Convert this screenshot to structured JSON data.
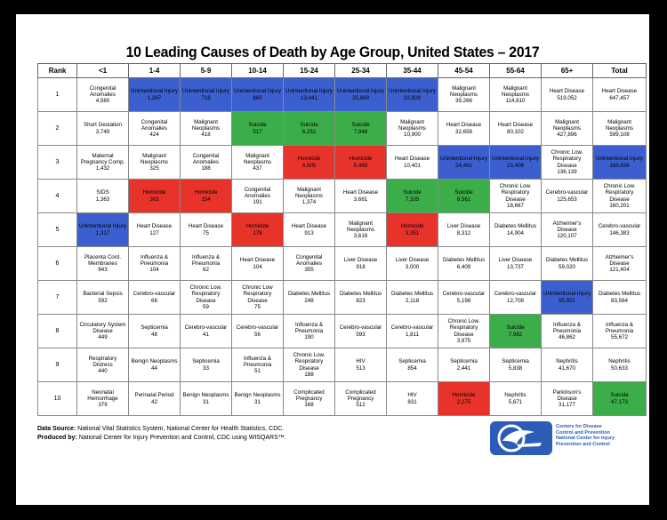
{
  "title": "10 Leading Causes of Death by Age Group, United States – 2017",
  "headers": [
    "Rank",
    "<1",
    "1-4",
    "5-9",
    "10-14",
    "15-24",
    "25-34",
    "35-44",
    "45-54",
    "55-64",
    "65+",
    "Total"
  ],
  "colors": {
    "unintentional_injury": "#3b5fcf",
    "homicide": "#e8332b",
    "suicide": "#3cae49"
  },
  "rows": [
    {
      "rank": "1",
      "cells": [
        {
          "name": "Congenital Anomalies",
          "value": "4,580",
          "hl": ""
        },
        {
          "name": "Unintentional Injury",
          "value": "1,267",
          "hl": "blue"
        },
        {
          "name": "Unintentional Injury",
          "value": "718",
          "hl": "blue"
        },
        {
          "name": "Unintentional Injury",
          "value": "860",
          "hl": "blue"
        },
        {
          "name": "Unintentional Injury",
          "value": "13,441",
          "hl": "blue"
        },
        {
          "name": "Unintentional Injury",
          "value": "25,669",
          "hl": "blue"
        },
        {
          "name": "Unintentional Injury",
          "value": "22,828",
          "hl": "blue"
        },
        {
          "name": "Malignant Neoplasms",
          "value": "39,266",
          "hl": ""
        },
        {
          "name": "Malignant Neoplasms",
          "value": "114,810",
          "hl": ""
        },
        {
          "name": "Heart Disease",
          "value": "519,052",
          "hl": ""
        },
        {
          "name": "Heart Disease",
          "value": "647,457",
          "hl": ""
        }
      ]
    },
    {
      "rank": "2",
      "cells": [
        {
          "name": "Short Gestation",
          "value": "3,749",
          "hl": ""
        },
        {
          "name": "Congenital Anomalies",
          "value": "424",
          "hl": ""
        },
        {
          "name": "Malignant Neoplasms",
          "value": "418",
          "hl": ""
        },
        {
          "name": "Suicide",
          "value": "517",
          "hl": "green"
        },
        {
          "name": "Suicide",
          "value": "6,252",
          "hl": "green"
        },
        {
          "name": "Suicide",
          "value": "7,948",
          "hl": "green"
        },
        {
          "name": "Malignant Neoplasms",
          "value": "10,900",
          "hl": ""
        },
        {
          "name": "Heart Disease",
          "value": "32,658",
          "hl": ""
        },
        {
          "name": "Heart Disease",
          "value": "80,102",
          "hl": ""
        },
        {
          "name": "Malignant Neoplasms",
          "value": "427,896",
          "hl": ""
        },
        {
          "name": "Malignant Neoplasms",
          "value": "599,108",
          "hl": ""
        }
      ]
    },
    {
      "rank": "3",
      "cells": [
        {
          "name": "Maternal Pregnancy Comp.",
          "value": "1,432",
          "hl": ""
        },
        {
          "name": "Malignant Neoplasms",
          "value": "325",
          "hl": ""
        },
        {
          "name": "Congenital Anomalies",
          "value": "188",
          "hl": ""
        },
        {
          "name": "Malignant Neoplasms",
          "value": "437",
          "hl": ""
        },
        {
          "name": "Homicide",
          "value": "4,905",
          "hl": "red"
        },
        {
          "name": "Homicide",
          "value": "5,488",
          "hl": "red"
        },
        {
          "name": "Heart Disease",
          "value": "10,401",
          "hl": ""
        },
        {
          "name": "Unintentional Injury",
          "value": "24,461",
          "hl": "blue"
        },
        {
          "name": "Unintentional Injury",
          "value": "23,408",
          "hl": "blue"
        },
        {
          "name": "Chronic Low. Respiratory Disease",
          "value": "136,139",
          "hl": ""
        },
        {
          "name": "Unintentional Injury",
          "value": "169,936",
          "hl": "blue"
        }
      ]
    },
    {
      "rank": "4",
      "cells": [
        {
          "name": "SIDS",
          "value": "1,363",
          "hl": ""
        },
        {
          "name": "Homicide",
          "value": "303",
          "hl": "red"
        },
        {
          "name": "Homicide",
          "value": "154",
          "hl": "red"
        },
        {
          "name": "Congenital Anomalies",
          "value": "191",
          "hl": ""
        },
        {
          "name": "Malignant Neoplasms",
          "value": "1,374",
          "hl": ""
        },
        {
          "name": "Heart Disease",
          "value": "3,681",
          "hl": ""
        },
        {
          "name": "Suicide",
          "value": "7,335",
          "hl": "green"
        },
        {
          "name": "Suicide",
          "value": "8,561",
          "hl": "green"
        },
        {
          "name": "Chronic Low. Respiratory Disease",
          "value": "18,667",
          "hl": ""
        },
        {
          "name": "Cerebro-vascular",
          "value": "125,653",
          "hl": ""
        },
        {
          "name": "Chronic Low. Respiratory Disease",
          "value": "160,201",
          "hl": ""
        }
      ]
    },
    {
      "rank": "5",
      "cells": [
        {
          "name": "Unintentional Injury",
          "value": "1,317",
          "hl": "blue"
        },
        {
          "name": "Heart Disease",
          "value": "127",
          "hl": ""
        },
        {
          "name": "Heart Disease",
          "value": "75",
          "hl": ""
        },
        {
          "name": "Homicide",
          "value": "178",
          "hl": "red"
        },
        {
          "name": "Heart Disease",
          "value": "913",
          "hl": ""
        },
        {
          "name": "Malignant Neoplasms",
          "value": "3,616",
          "hl": ""
        },
        {
          "name": "Homicide",
          "value": "3,351",
          "hl": "red"
        },
        {
          "name": "Liver Disease",
          "value": "8,312",
          "hl": ""
        },
        {
          "name": "Diabetes Mellitus",
          "value": "14,904",
          "hl": ""
        },
        {
          "name": "Alzheimer's Disease",
          "value": "120,107",
          "hl": ""
        },
        {
          "name": "Cerebro-vascular",
          "value": "146,383",
          "hl": ""
        }
      ]
    },
    {
      "rank": "6",
      "cells": [
        {
          "name": "Placenta Cord. Membranes",
          "value": "843",
          "hl": ""
        },
        {
          "name": "Influenza & Pneumonia",
          "value": "104",
          "hl": ""
        },
        {
          "name": "Influenza & Pneumonia",
          "value": "62",
          "hl": ""
        },
        {
          "name": "Heart Disease",
          "value": "104",
          "hl": ""
        },
        {
          "name": "Congenital Anomalies",
          "value": "355",
          "hl": ""
        },
        {
          "name": "Liver Disease",
          "value": "918",
          "hl": ""
        },
        {
          "name": "Liver Disease",
          "value": "3,000",
          "hl": ""
        },
        {
          "name": "Diabetes Mellitus",
          "value": "6,409",
          "hl": ""
        },
        {
          "name": "Liver Disease",
          "value": "13,737",
          "hl": ""
        },
        {
          "name": "Diabetes Mellitus",
          "value": "59,020",
          "hl": ""
        },
        {
          "name": "Alzheimer's Disease",
          "value": "121,404",
          "hl": ""
        }
      ]
    },
    {
      "rank": "7",
      "cells": [
        {
          "name": "Bacterial Sepsis",
          "value": "592",
          "hl": ""
        },
        {
          "name": "Cerebro-vascular",
          "value": "66",
          "hl": ""
        },
        {
          "name": "Chronic Low. Respiratory Disease",
          "value": "59",
          "hl": ""
        },
        {
          "name": "Chronic Low Respiratory Disease",
          "value": "75",
          "hl": ""
        },
        {
          "name": "Diabetes Mellitus",
          "value": "248",
          "hl": ""
        },
        {
          "name": "Diabetes Mellitus",
          "value": "823",
          "hl": ""
        },
        {
          "name": "Diabetes Mellitus",
          "value": "2,118",
          "hl": ""
        },
        {
          "name": "Cerebro-vascular",
          "value": "5,198",
          "hl": ""
        },
        {
          "name": "Cerebro-vascular",
          "value": "12,708",
          "hl": ""
        },
        {
          "name": "Unintentional Injury",
          "value": "55,951",
          "hl": "blue"
        },
        {
          "name": "Diabetes Mellitus",
          "value": "83,564",
          "hl": ""
        }
      ]
    },
    {
      "rank": "8",
      "cells": [
        {
          "name": "Circulatory System Disease",
          "value": "449",
          "hl": ""
        },
        {
          "name": "Septicemia",
          "value": "48",
          "hl": ""
        },
        {
          "name": "Cerebro-vascular",
          "value": "41",
          "hl": ""
        },
        {
          "name": "Cerebro-vascular",
          "value": "56",
          "hl": ""
        },
        {
          "name": "Influenza & Pneumonia",
          "value": "190",
          "hl": ""
        },
        {
          "name": "Cerebro-vascular",
          "value": "593",
          "hl": ""
        },
        {
          "name": "Cerebro-vascular",
          "value": "1,811",
          "hl": ""
        },
        {
          "name": "Chronic Low. Respiratory Disease",
          "value": "3,975",
          "hl": ""
        },
        {
          "name": "Suicide",
          "value": "7,982",
          "hl": "green"
        },
        {
          "name": "Influenza & Pneumonia",
          "value": "46,862",
          "hl": ""
        },
        {
          "name": "Influenza & Pneumonia",
          "value": "55,672",
          "hl": ""
        }
      ]
    },
    {
      "rank": "9",
      "cells": [
        {
          "name": "Respiratory Distress",
          "value": "440",
          "hl": ""
        },
        {
          "name": "Benign Neoplasms",
          "value": "44",
          "hl": ""
        },
        {
          "name": "Septicemia",
          "value": "33",
          "hl": ""
        },
        {
          "name": "Influenza & Pneumonia",
          "value": "51",
          "hl": ""
        },
        {
          "name": "Chronic Low. Respiratory Disease",
          "value": "188",
          "hl": ""
        },
        {
          "name": "HIV",
          "value": "513",
          "hl": ""
        },
        {
          "name": "Septicemia",
          "value": "854",
          "hl": ""
        },
        {
          "name": "Septicemia",
          "value": "2,441",
          "hl": ""
        },
        {
          "name": "Septicemia",
          "value": "5,838",
          "hl": ""
        },
        {
          "name": "Nephritis",
          "value": "41,670",
          "hl": ""
        },
        {
          "name": "Nephritis",
          "value": "50,633",
          "hl": ""
        }
      ]
    },
    {
      "rank": "10",
      "cells": [
        {
          "name": "Neonatal Hemorrhage",
          "value": "379",
          "hl": ""
        },
        {
          "name": "Perinatal Period",
          "value": "42",
          "hl": ""
        },
        {
          "name": "Benign Neoplasms",
          "value": "31",
          "hl": ""
        },
        {
          "name": "Benign Neoplasms",
          "value": "31",
          "hl": ""
        },
        {
          "name": "Complicated Pregnancy",
          "value": "168",
          "hl": ""
        },
        {
          "name": "Complicated Pregnancy",
          "value": "512",
          "hl": ""
        },
        {
          "name": "HIV",
          "value": "831",
          "hl": ""
        },
        {
          "name": "Homicide",
          "value": "2,275",
          "hl": "red"
        },
        {
          "name": "Nephritis",
          "value": "5,671",
          "hl": ""
        },
        {
          "name": "Parkinson's Disease",
          "value": "31,177",
          "hl": ""
        },
        {
          "name": "Suicide",
          "value": "47,173",
          "hl": "green"
        }
      ]
    }
  ],
  "footer": {
    "source_label": "Data Source:",
    "source_text": "National Vital Statistics System, National Center for Health Statistics, CDC.",
    "produced_label": "Produced by:",
    "produced_text": "National Center for Injury Prevention and Control, CDC using WISQARS™."
  },
  "logo": {
    "lines": [
      "Centers for Disease",
      "Control and Prevention",
      "National Center for Injury",
      "Prevention and Control"
    ]
  }
}
